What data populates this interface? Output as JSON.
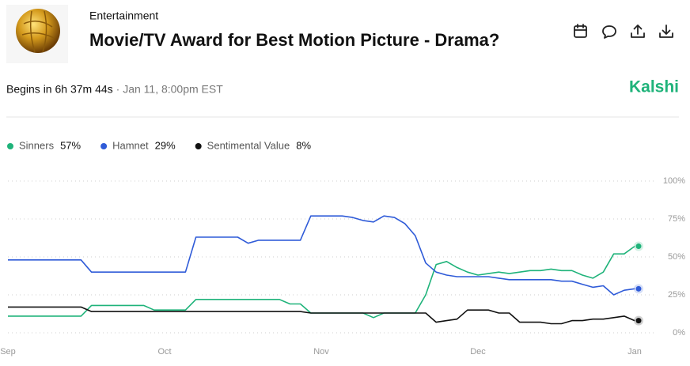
{
  "header": {
    "category": "Entertainment",
    "title": "Movie/TV Award for Best Motion Picture - Drama?",
    "countdown": "Begins in 6h 37m 44s",
    "date": "· Jan 11, 8:00pm EST",
    "brand": "Kalshi"
  },
  "chart_data": {
    "type": "line",
    "categories": [
      "Sep",
      null,
      null,
      null,
      null,
      null,
      null,
      null,
      null,
      null,
      null,
      null,
      null,
      null,
      null,
      "Oct",
      null,
      null,
      null,
      null,
      null,
      null,
      null,
      null,
      null,
      null,
      null,
      null,
      null,
      null,
      "Nov",
      null,
      null,
      null,
      null,
      null,
      null,
      null,
      null,
      null,
      null,
      null,
      null,
      null,
      null,
      "Dec",
      null,
      null,
      null,
      null,
      null,
      null,
      null,
      null,
      null,
      null,
      null,
      null,
      null,
      null,
      "Jan"
    ],
    "series": [
      {
        "name": "Sinners",
        "current": "57%",
        "color": "#1fb37a",
        "values": [
          11,
          11,
          11,
          11,
          11,
          11,
          11,
          11,
          18,
          18,
          18,
          18,
          18,
          18,
          15,
          15,
          15,
          15,
          22,
          22,
          22,
          22,
          22,
          22,
          22,
          22,
          22,
          19,
          19,
          13,
          13,
          13,
          13,
          13,
          13,
          10,
          13,
          13,
          13,
          13,
          25,
          45,
          47,
          43,
          40,
          38,
          39,
          40,
          39,
          40,
          41,
          41,
          42,
          41,
          41,
          38,
          36,
          40,
          52,
          52,
          57
        ]
      },
      {
        "name": "Hamnet",
        "current": "29%",
        "color": "#2f5bd8",
        "values": [
          48,
          48,
          48,
          48,
          48,
          48,
          48,
          48,
          40,
          40,
          40,
          40,
          40,
          40,
          40,
          40,
          40,
          40,
          63,
          63,
          63,
          63,
          63,
          59,
          61,
          61,
          61,
          61,
          61,
          77,
          77,
          77,
          77,
          76,
          74,
          73,
          77,
          76,
          72,
          64,
          46,
          40,
          38,
          37,
          37,
          37,
          37,
          36,
          35,
          35,
          35,
          35,
          35,
          34,
          34,
          32,
          30,
          31,
          25,
          28,
          29
        ]
      },
      {
        "name": "Sentimental Value",
        "current": "8%",
        "color": "#111111",
        "values": [
          17,
          17,
          17,
          17,
          17,
          17,
          17,
          17,
          14,
          14,
          14,
          14,
          14,
          14,
          14,
          14,
          14,
          14,
          14,
          14,
          14,
          14,
          14,
          14,
          14,
          14,
          14,
          14,
          14,
          13,
          13,
          13,
          13,
          13,
          13,
          13,
          13,
          13,
          13,
          13,
          13,
          7,
          8,
          9,
          15,
          15,
          15,
          13,
          13,
          7,
          7,
          7,
          6,
          6,
          8,
          8,
          9,
          9,
          10,
          11,
          8
        ]
      }
    ],
    "ylim": [
      0,
      100
    ],
    "yticks": [
      {
        "value": 0,
        "label": "0%"
      },
      {
        "value": 25,
        "label": "25%"
      },
      {
        "value": 50,
        "label": "50%"
      },
      {
        "value": 75,
        "label": "75%"
      },
      {
        "value": 100,
        "label": "100%"
      }
    ],
    "grid": true
  }
}
